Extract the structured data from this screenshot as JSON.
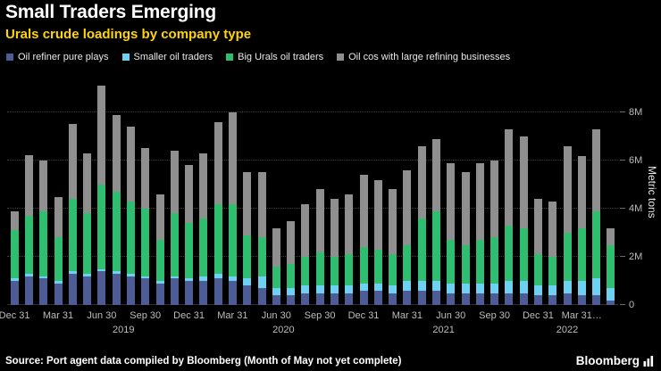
{
  "header": {
    "title": "Small Traders Emerging",
    "subtitle": "Urals crude loadings by company type"
  },
  "colors": {
    "background": "#000000",
    "title": "#ffffff",
    "subtitle_yellow": "#ffd500",
    "axis_text": "#bdbdbd",
    "series_navy": "#4d5c94",
    "series_cyan": "#6fd1f2",
    "series_green": "#2fbd70",
    "series_gray": "#8f8f8f"
  },
  "legend": [
    {
      "label": "Oil refiner pure plays",
      "color": "#4d5c94"
    },
    {
      "label": "Smaller oil traders",
      "color": "#6fd1f2"
    },
    {
      "label": "Big Urals oil traders",
      "color": "#2fbd70"
    },
    {
      "label": "Oil cos with large refining businesses",
      "color": "#8f8f8f"
    }
  ],
  "chart_data": {
    "type": "bar",
    "stacked": true,
    "title": "Small Traders Emerging",
    "subtitle": "Urals crude loadings by company type",
    "ylabel": "Metric tons",
    "unit": "metric tons (millions)",
    "ylim": [
      0,
      9.4
    ],
    "grid": true,
    "legend_position": "top",
    "yticks": [
      0,
      2,
      4,
      6,
      8
    ],
    "ytick_labels": [
      "0",
      "2M",
      "4M",
      "6M",
      "8M"
    ],
    "x": [
      "Dec 2018",
      "Jan 2019",
      "Feb 2019",
      "Mar 2019",
      "Apr 2019",
      "May 2019",
      "Jun 2019",
      "Jul 2019",
      "Aug 2019",
      "Sep 2019",
      "Oct 2019",
      "Nov 2019",
      "Dec 2019",
      "Jan 2020",
      "Feb 2020",
      "Mar 2020",
      "Apr 2020",
      "May 2020",
      "Jun 2020",
      "Jul 2020",
      "Aug 2020",
      "Sep 2020",
      "Oct 2020",
      "Nov 2020",
      "Dec 2020",
      "Jan 2021",
      "Feb 2021",
      "Mar 2021",
      "Apr 2021",
      "May 2021",
      "Jun 2021",
      "Jul 2021",
      "Aug 2021",
      "Sep 2021",
      "Oct 2021",
      "Nov 2021",
      "Dec 2021",
      "Jan 2022",
      "Feb 2022",
      "Mar 2022",
      "Apr 2022",
      "May 2022"
    ],
    "series": [
      {
        "name": "Oil refiner pure plays",
        "color": "#4d5c94",
        "values": [
          1.0,
          1.2,
          1.1,
          0.9,
          1.3,
          1.2,
          1.4,
          1.3,
          1.2,
          1.1,
          0.9,
          1.1,
          1.0,
          1.0,
          1.1,
          1.0,
          0.8,
          0.7,
          0.4,
          0.4,
          0.5,
          0.5,
          0.5,
          0.5,
          0.6,
          0.6,
          0.5,
          0.6,
          0.6,
          0.6,
          0.5,
          0.5,
          0.5,
          0.5,
          0.5,
          0.5,
          0.4,
          0.4,
          0.5,
          0.4,
          0.4,
          0.2
        ]
      },
      {
        "name": "Smaller oil traders",
        "color": "#6fd1f2",
        "values": [
          0.1,
          0.1,
          0.1,
          0.1,
          0.1,
          0.1,
          0.1,
          0.1,
          0.1,
          0.1,
          0.1,
          0.1,
          0.1,
          0.2,
          0.2,
          0.2,
          0.3,
          0.5,
          0.3,
          0.3,
          0.3,
          0.3,
          0.3,
          0.3,
          0.3,
          0.3,
          0.3,
          0.4,
          0.4,
          0.4,
          0.4,
          0.4,
          0.4,
          0.4,
          0.5,
          0.5,
          0.4,
          0.4,
          0.5,
          0.6,
          0.7,
          0.5
        ]
      },
      {
        "name": "Big Urals oil traders",
        "color": "#2fbd70",
        "values": [
          2.0,
          2.4,
          2.7,
          1.8,
          3.0,
          2.5,
          3.5,
          3.3,
          3.0,
          2.8,
          1.7,
          2.6,
          2.3,
          2.4,
          2.9,
          3.0,
          1.8,
          1.6,
          0.9,
          1.0,
          1.2,
          1.4,
          1.2,
          1.3,
          1.5,
          1.4,
          1.3,
          1.5,
          2.6,
          2.9,
          1.8,
          1.6,
          1.8,
          1.9,
          2.3,
          2.2,
          1.3,
          1.2,
          2.0,
          2.2,
          2.8,
          1.8
        ]
      },
      {
        "name": "Oil cos with large refining businesses",
        "color": "#8f8f8f",
        "values": [
          0.8,
          2.5,
          2.1,
          1.7,
          3.1,
          2.5,
          4.1,
          3.2,
          3.1,
          2.5,
          1.9,
          2.6,
          2.4,
          2.7,
          3.4,
          3.8,
          2.6,
          2.7,
          1.6,
          1.8,
          2.2,
          2.6,
          2.4,
          2.5,
          3.0,
          2.9,
          2.7,
          3.1,
          3.0,
          3.0,
          3.2,
          3.0,
          3.2,
          3.2,
          4.0,
          3.8,
          2.3,
          2.3,
          3.6,
          3.0,
          3.4,
          0.7
        ]
      }
    ],
    "xticks": [
      {
        "index": 0,
        "label": "Dec 31"
      },
      {
        "index": 3,
        "label": "Mar 31"
      },
      {
        "index": 6,
        "label": "Jun 30"
      },
      {
        "index": 9,
        "label": "Sep 30"
      },
      {
        "index": 12,
        "label": "Dec 31"
      },
      {
        "index": 15,
        "label": "Mar 31"
      },
      {
        "index": 18,
        "label": "Jun 30"
      },
      {
        "index": 21,
        "label": "Sep 30"
      },
      {
        "index": 24,
        "label": "Dec 31"
      },
      {
        "index": 27,
        "label": "Mar 31"
      },
      {
        "index": 30,
        "label": "Jun 30"
      },
      {
        "index": 33,
        "label": "Sep 30"
      },
      {
        "index": 36,
        "label": "Dec 31"
      },
      {
        "index": 39,
        "label": "Mar 31…"
      }
    ],
    "year_labels": [
      {
        "pos": 7.5,
        "label": "2019"
      },
      {
        "pos": 18.5,
        "label": "2020"
      },
      {
        "pos": 29.5,
        "label": "2021"
      },
      {
        "pos": 38,
        "label": "2022"
      }
    ]
  },
  "footer": {
    "source": "Source: Port agent data compiled by Bloomberg (Month of May not yet complete)",
    "brand": "Bloomberg"
  }
}
